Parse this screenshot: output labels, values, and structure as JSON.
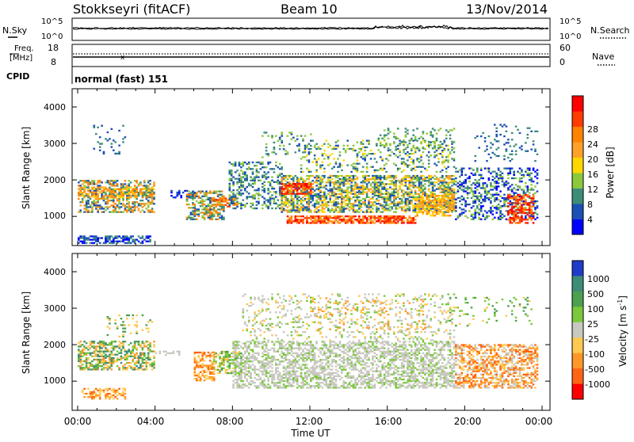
{
  "header": {
    "station": "Stokkseyri (fitACF)",
    "beam": "Beam 10",
    "date": "13/Nov/2014"
  },
  "sky_panel": {
    "left_label": "N.Sky",
    "right_label": "N.Search",
    "left_ticks": [
      "10^5",
      "10^0"
    ],
    "right_ticks": [
      "10^5",
      "10^0"
    ]
  },
  "freq_panel": {
    "left_label_1": "Freq.",
    "left_label_2": "[MHz]",
    "right_label": "Nave",
    "left_ticks": [
      "18",
      "8"
    ],
    "right_ticks": [
      "60",
      "0"
    ]
  },
  "cpid": {
    "label": "CPID",
    "value": "normal (fast) 151"
  },
  "chart_data": [
    {
      "type": "heatmap",
      "ylabel": "Slant Range [km]",
      "xlabel": "",
      "y_ticks": [
        "1000",
        "2000",
        "3000",
        "4000"
      ],
      "ylim": [
        200,
        4500
      ],
      "colorbar": {
        "label": "Power [dB]",
        "ticks": [
          "4",
          "8",
          "12",
          "16",
          "20",
          "24",
          "28"
        ],
        "colors": [
          "#0000ff",
          "#1a50b4",
          "#3c8c78",
          "#8cc83c",
          "#ffd700",
          "#ffa028",
          "#ff8200",
          "#ff3c00",
          "#ff0000"
        ]
      }
    },
    {
      "type": "heatmap",
      "ylabel": "Slant Range [km]",
      "xlabel": "Time UT",
      "x_ticks": [
        "00:00",
        "04:00",
        "08:00",
        "12:00",
        "16:00",
        "20:00",
        "00:00"
      ],
      "y_ticks": [
        "1000",
        "2000",
        "3000",
        "4000"
      ],
      "ylim": [
        200,
        4500
      ],
      "colorbar": {
        "label": "Velocity [m s",
        "label_sup": "-1",
        "label_end": "]",
        "ticks": [
          "1000",
          "500",
          "100",
          "25",
          "-25",
          "-100",
          "-500",
          "-1000"
        ],
        "colors": [
          "#1e3cc8",
          "#3c8c78",
          "#4ca050",
          "#7cc83c",
          "#c8c8c0",
          "#ffc850",
          "#ff9628",
          "#ff6414",
          "#ff0000"
        ]
      }
    }
  ]
}
